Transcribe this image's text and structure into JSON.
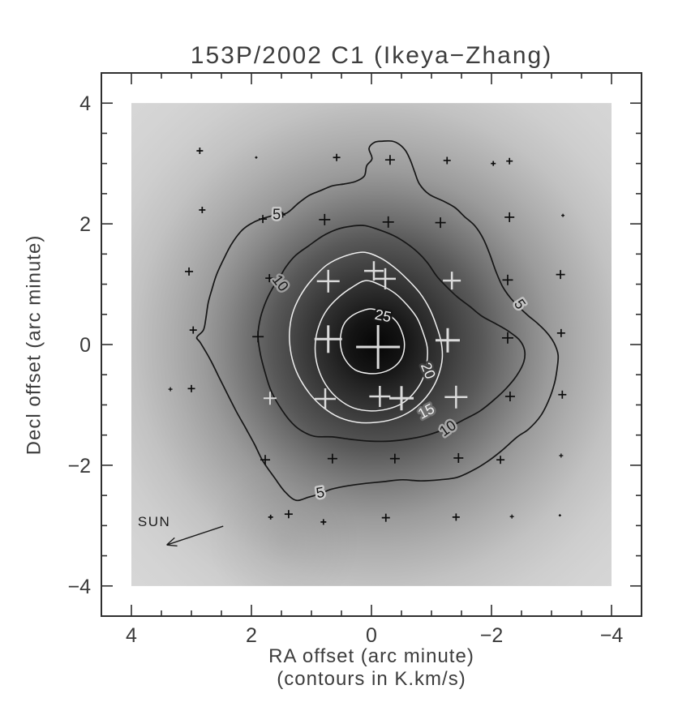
{
  "title": "153P/2002 C1 (Ikeya−Zhang)",
  "chart_data": {
    "type": "contour-map",
    "title": "153P/2002 C1 (Ikeya−Zhang)",
    "xlabel": "RA offset (arc minute)",
    "xlabel2": "(contours in K.km/s)",
    "ylabel": "Decl offset (arc minute)",
    "contour_units": "K.km/s",
    "xlim": [
      4.5,
      -4.5
    ],
    "ylim": [
      -4.5,
      4.5
    ],
    "x_ticks": [
      4,
      2,
      0,
      -2,
      -4
    ],
    "y_ticks": [
      4,
      2,
      0,
      -2,
      -4
    ],
    "x_tick_labels": [
      "4",
      "2",
      "0",
      "−2",
      "−4"
    ],
    "y_tick_labels": [
      "4",
      "2",
      "0",
      "−2",
      "−4"
    ],
    "minor_tick_step": 0.5,
    "image_extent": {
      "ra": [
        4,
        -4
      ],
      "dec": [
        -4,
        4
      ]
    },
    "colors": {
      "field_light": "#d6d6d6",
      "center_dark": "#060606",
      "contour_black": "#161616",
      "contour_white": "#efefef",
      "cross_black": "#0d0d0d",
      "cross_white": "#dadada",
      "frame": "#2f2f2f"
    },
    "peak_center": {
      "ra": -0.09,
      "dec": 0.0
    },
    "contour_levels": [
      5,
      10,
      15,
      20,
      25
    ],
    "contours": [
      {
        "level": 5,
        "color": "black",
        "points": [
          [
            -0.01,
            3.08
          ],
          [
            0.04,
            3.25
          ],
          [
            -0.05,
            3.35
          ],
          [
            -0.19,
            3.37
          ],
          [
            -0.34,
            3.37
          ],
          [
            -0.46,
            3.32
          ],
          [
            -0.57,
            3.21
          ],
          [
            -0.65,
            3.05
          ],
          [
            -0.72,
            2.86
          ],
          [
            -0.8,
            2.66
          ],
          [
            -0.96,
            2.49
          ],
          [
            -1.19,
            2.38
          ],
          [
            -1.39,
            2.27
          ],
          [
            -1.55,
            2.12
          ],
          [
            -1.72,
            1.97
          ],
          [
            -1.86,
            1.76
          ],
          [
            -1.97,
            1.5
          ],
          [
            -2.07,
            1.22
          ],
          [
            -2.18,
            0.97
          ],
          [
            -2.31,
            0.78
          ],
          [
            -2.46,
            0.62
          ],
          [
            -2.61,
            0.48
          ],
          [
            -2.78,
            0.34
          ],
          [
            -2.93,
            0.19
          ],
          [
            -3.04,
            0.03
          ],
          [
            -3.11,
            -0.17
          ],
          [
            -3.09,
            -0.42
          ],
          [
            -3.05,
            -0.64
          ],
          [
            -2.96,
            -0.91
          ],
          [
            -2.82,
            -1.18
          ],
          [
            -2.62,
            -1.4
          ],
          [
            -2.43,
            -1.53
          ],
          [
            -2.18,
            -1.75
          ],
          [
            -1.96,
            -1.92
          ],
          [
            -1.7,
            -2.08
          ],
          [
            -1.43,
            -2.2
          ],
          [
            -1.14,
            -2.24
          ],
          [
            -0.82,
            -2.26
          ],
          [
            -0.51,
            -2.24
          ],
          [
            -0.22,
            -2.27
          ],
          [
            0.09,
            -2.3
          ],
          [
            0.39,
            -2.34
          ],
          [
            0.68,
            -2.4
          ],
          [
            0.85,
            -2.47
          ],
          [
            1.05,
            -2.53
          ],
          [
            1.26,
            -2.58
          ],
          [
            1.45,
            -2.43
          ],
          [
            1.62,
            -2.2
          ],
          [
            1.81,
            -1.93
          ],
          [
            1.95,
            -1.65
          ],
          [
            2.11,
            -1.36
          ],
          [
            2.24,
            -1.13
          ],
          [
            2.38,
            -0.86
          ],
          [
            2.54,
            -0.54
          ],
          [
            2.69,
            -0.24
          ],
          [
            2.85,
            0.03
          ],
          [
            2.91,
            0.12
          ],
          [
            2.8,
            0.24
          ],
          [
            2.76,
            0.43
          ],
          [
            2.72,
            0.69
          ],
          [
            2.66,
            0.91
          ],
          [
            2.58,
            1.16
          ],
          [
            2.47,
            1.4
          ],
          [
            2.34,
            1.65
          ],
          [
            2.18,
            1.87
          ],
          [
            2.03,
            1.99
          ],
          [
            1.84,
            2.08
          ],
          [
            1.62,
            2.14
          ],
          [
            1.41,
            2.18
          ],
          [
            1.22,
            2.34
          ],
          [
            1.04,
            2.47
          ],
          [
            0.85,
            2.55
          ],
          [
            0.65,
            2.63
          ],
          [
            0.46,
            2.66
          ],
          [
            0.27,
            2.7
          ],
          [
            0.12,
            2.79
          ],
          [
            0.08,
            2.96
          ]
        ]
      },
      {
        "level": 10,
        "color": "black",
        "points": [
          [
            0.11,
            1.97
          ],
          [
            -0.16,
            1.89
          ],
          [
            -0.38,
            1.8
          ],
          [
            -0.58,
            1.68
          ],
          [
            -0.76,
            1.54
          ],
          [
            -0.93,
            1.36
          ],
          [
            -1.09,
            1.13
          ],
          [
            -1.26,
            0.95
          ],
          [
            -1.43,
            0.79
          ],
          [
            -1.64,
            0.63
          ],
          [
            -1.84,
            0.47
          ],
          [
            -2.08,
            0.34
          ],
          [
            -2.3,
            0.21
          ],
          [
            -2.47,
            0.07
          ],
          [
            -2.55,
            -0.09
          ],
          [
            -2.54,
            -0.28
          ],
          [
            -2.43,
            -0.5
          ],
          [
            -2.26,
            -0.71
          ],
          [
            -2.05,
            -0.91
          ],
          [
            -1.81,
            -1.1
          ],
          [
            -1.55,
            -1.24
          ],
          [
            -1.27,
            -1.38
          ],
          [
            -0.97,
            -1.49
          ],
          [
            -0.65,
            -1.56
          ],
          [
            -0.31,
            -1.6
          ],
          [
            0.03,
            -1.6
          ],
          [
            0.35,
            -1.57
          ],
          [
            0.65,
            -1.53
          ],
          [
            0.95,
            -1.52
          ],
          [
            1.18,
            -1.42
          ],
          [
            1.36,
            -1.26
          ],
          [
            1.54,
            -1.01
          ],
          [
            1.68,
            -0.75
          ],
          [
            1.77,
            -0.47
          ],
          [
            1.85,
            -0.16
          ],
          [
            1.89,
            0.15
          ],
          [
            1.85,
            0.44
          ],
          [
            1.76,
            0.71
          ],
          [
            1.65,
            0.93
          ],
          [
            1.54,
            1.09
          ],
          [
            1.43,
            1.28
          ],
          [
            1.26,
            1.48
          ],
          [
            1.04,
            1.64
          ],
          [
            0.81,
            1.8
          ],
          [
            0.57,
            1.91
          ],
          [
            0.34,
            1.96
          ]
        ]
      },
      {
        "level": 15,
        "color": "white",
        "points": [
          [
            0.14,
            1.53
          ],
          [
            -0.14,
            1.44
          ],
          [
            -0.38,
            1.28
          ],
          [
            -0.61,
            1.07
          ],
          [
            -0.81,
            0.85
          ],
          [
            -0.97,
            0.59
          ],
          [
            -1.08,
            0.32
          ],
          [
            -1.16,
            0.05
          ],
          [
            -1.18,
            -0.23
          ],
          [
            -1.12,
            -0.5
          ],
          [
            -1.0,
            -0.75
          ],
          [
            -0.82,
            -0.97
          ],
          [
            -0.61,
            -1.13
          ],
          [
            -0.35,
            -1.24
          ],
          [
            -0.07,
            -1.29
          ],
          [
            0.23,
            -1.29
          ],
          [
            0.53,
            -1.21
          ],
          [
            0.78,
            -1.06
          ],
          [
            1.0,
            -0.85
          ],
          [
            1.18,
            -0.59
          ],
          [
            1.3,
            -0.31
          ],
          [
            1.36,
            -0.01
          ],
          [
            1.36,
            0.28
          ],
          [
            1.3,
            0.56
          ],
          [
            1.16,
            0.85
          ],
          [
            0.97,
            1.1
          ],
          [
            0.74,
            1.32
          ],
          [
            0.46,
            1.46
          ]
        ]
      },
      {
        "level": 20,
        "color": "white",
        "points": [
          [
            0.09,
            1.06
          ],
          [
            -0.16,
            0.98
          ],
          [
            -0.39,
            0.85
          ],
          [
            -0.59,
            0.66
          ],
          [
            -0.76,
            0.44
          ],
          [
            -0.86,
            0.2
          ],
          [
            -0.93,
            -0.05
          ],
          [
            -0.92,
            -0.32
          ],
          [
            -0.85,
            -0.58
          ],
          [
            -0.7,
            -0.81
          ],
          [
            -0.5,
            -0.98
          ],
          [
            -0.26,
            -1.07
          ],
          [
            0.01,
            -1.1
          ],
          [
            0.3,
            -1.05
          ],
          [
            0.54,
            -0.91
          ],
          [
            0.73,
            -0.71
          ],
          [
            0.86,
            -0.47
          ],
          [
            0.93,
            -0.2
          ],
          [
            0.93,
            0.08
          ],
          [
            0.86,
            0.35
          ],
          [
            0.73,
            0.59
          ],
          [
            0.54,
            0.79
          ],
          [
            0.32,
            0.95
          ]
        ]
      },
      {
        "level": 25,
        "color": "white",
        "points": [
          [
            0.32,
            0.48
          ],
          [
            0.15,
            0.56
          ],
          [
            -0.01,
            0.59
          ],
          [
            -0.23,
            0.52
          ],
          [
            -0.41,
            0.39
          ],
          [
            -0.51,
            0.2
          ],
          [
            -0.55,
            0.0
          ],
          [
            -0.51,
            -0.21
          ],
          [
            -0.39,
            -0.36
          ],
          [
            -0.19,
            -0.46
          ],
          [
            0.04,
            -0.48
          ],
          [
            0.27,
            -0.42
          ],
          [
            0.43,
            -0.26
          ],
          [
            0.51,
            -0.05
          ],
          [
            0.51,
            0.17
          ],
          [
            0.45,
            0.35
          ]
        ]
      }
    ],
    "contour_labels": [
      {
        "text": "5",
        "ra": 1.58,
        "dec": 2.14,
        "rot": 0,
        "color": "black",
        "halo": "#c7c7c7"
      },
      {
        "text": "5",
        "ra": -2.46,
        "dec": 0.66,
        "rot": 55,
        "color": "black",
        "halo": "#c2c2c2"
      },
      {
        "text": "5",
        "ra": 0.85,
        "dec": -2.47,
        "rot": -10,
        "color": "black",
        "halo": "#cbcbcb"
      },
      {
        "text": "10",
        "ra": 1.53,
        "dec": 1.01,
        "rot": 52,
        "color": "black",
        "halo": "#9e9e9e"
      },
      {
        "text": "10",
        "ra": -1.28,
        "dec": -1.4,
        "rot": -35,
        "color": "black",
        "halo": "#a8a8a8"
      },
      {
        "text": "15",
        "ra": -0.92,
        "dec": -1.12,
        "rot": -28,
        "color": "white",
        "halo": "#6f6f6f"
      },
      {
        "text": "20",
        "ra": -0.93,
        "dec": -0.44,
        "rot": 68,
        "color": "white",
        "halo": "#3f3f3f"
      },
      {
        "text": "25",
        "ra": -0.19,
        "dec": 0.46,
        "rot": 12,
        "color": "white",
        "halo": "#161616"
      }
    ],
    "markers": [
      {
        "ra": 2.86,
        "dec": 3.21,
        "size": 8,
        "color": "b"
      },
      {
        "ra": 1.92,
        "dec": 3.1,
        "size": 3,
        "color": "b"
      },
      {
        "ra": 0.58,
        "dec": 3.1,
        "size": 9,
        "color": "b"
      },
      {
        "ra": -0.31,
        "dec": 3.06,
        "size": 12,
        "color": "b"
      },
      {
        "ra": -1.26,
        "dec": 3.05,
        "size": 9,
        "color": "b"
      },
      {
        "ra": -2.03,
        "dec": 3.0,
        "size": 6,
        "color": "b"
      },
      {
        "ra": -2.3,
        "dec": 3.04,
        "size": 8,
        "color": "b"
      },
      {
        "ra": 2.82,
        "dec": 2.23,
        "size": 8,
        "color": "b"
      },
      {
        "ra": 1.81,
        "dec": 2.08,
        "size": 10,
        "color": "b"
      },
      {
        "ra": 1.48,
        "dec": 2.15,
        "size": 7,
        "color": "b"
      },
      {
        "ra": 0.78,
        "dec": 2.07,
        "size": 14,
        "color": "b"
      },
      {
        "ra": -0.28,
        "dec": 2.03,
        "size": 14,
        "color": "b"
      },
      {
        "ra": -1.15,
        "dec": 2.02,
        "size": 13,
        "color": "b"
      },
      {
        "ra": -2.3,
        "dec": 2.11,
        "size": 12,
        "color": "b"
      },
      {
        "ra": -3.19,
        "dec": 2.14,
        "size": 4,
        "color": "b"
      },
      {
        "ra": 3.04,
        "dec": 1.21,
        "size": 10,
        "color": "b"
      },
      {
        "ra": 1.7,
        "dec": 1.1,
        "size": 10,
        "color": "b"
      },
      {
        "ra": 0.72,
        "dec": 1.05,
        "size": 28,
        "color": "w"
      },
      {
        "ra": -0.04,
        "dec": 1.22,
        "size": 24,
        "color": "w"
      },
      {
        "ra": -0.23,
        "dec": 1.09,
        "size": 26,
        "color": "w"
      },
      {
        "ra": -1.34,
        "dec": 1.06,
        "size": 22,
        "color": "w"
      },
      {
        "ra": -2.27,
        "dec": 1.07,
        "size": 13,
        "color": "b"
      },
      {
        "ra": -3.15,
        "dec": 1.16,
        "size": 11,
        "color": "b"
      },
      {
        "ra": 2.97,
        "dec": 0.24,
        "size": 9,
        "color": "b"
      },
      {
        "ra": 1.89,
        "dec": 0.13,
        "size": 14,
        "color": "b"
      },
      {
        "ra": 0.72,
        "dec": 0.09,
        "size": 34,
        "color": "w"
      },
      {
        "ra": -0.11,
        "dec": -0.04,
        "size": 54,
        "color": "w"
      },
      {
        "ra": -1.27,
        "dec": 0.07,
        "size": 30,
        "color": "w"
      },
      {
        "ra": -2.27,
        "dec": 0.11,
        "size": 14,
        "color": "b"
      },
      {
        "ra": -3.16,
        "dec": 0.19,
        "size": 10,
        "color": "b"
      },
      {
        "ra": 1.69,
        "dec": -0.89,
        "size": 16,
        "color": "w"
      },
      {
        "ra": 0.77,
        "dec": -0.9,
        "size": 26,
        "color": "w"
      },
      {
        "ra": -0.14,
        "dec": -0.86,
        "size": 26,
        "color": "w"
      },
      {
        "ra": -0.5,
        "dec": -0.89,
        "size": 30,
        "color": "w"
      },
      {
        "ra": -1.41,
        "dec": -0.87,
        "size": 28,
        "color": "w"
      },
      {
        "ra": -2.31,
        "dec": -0.86,
        "size": 12,
        "color": "b"
      },
      {
        "ra": -3.18,
        "dec": -0.83,
        "size": 10,
        "color": "b"
      },
      {
        "ra": 1.77,
        "dec": -1.91,
        "size": 12,
        "color": "b"
      },
      {
        "ra": 0.65,
        "dec": -1.89,
        "size": 12,
        "color": "b"
      },
      {
        "ra": -0.39,
        "dec": -1.89,
        "size": 12,
        "color": "b"
      },
      {
        "ra": -1.45,
        "dec": -1.88,
        "size": 12,
        "color": "b"
      },
      {
        "ra": -2.15,
        "dec": -1.91,
        "size": 10,
        "color": "b"
      },
      {
        "ra": -3.16,
        "dec": -1.84,
        "size": 5,
        "color": "b"
      },
      {
        "ra": 1.68,
        "dec": -2.86,
        "size": 6,
        "color": "b"
      },
      {
        "ra": 1.38,
        "dec": -2.81,
        "size": 10,
        "color": "b"
      },
      {
        "ra": 0.8,
        "dec": -2.94,
        "size": 7,
        "color": "b"
      },
      {
        "ra": -0.24,
        "dec": -2.87,
        "size": 10,
        "color": "b"
      },
      {
        "ra": -1.41,
        "dec": -2.86,
        "size": 9,
        "color": "b"
      },
      {
        "ra": -2.34,
        "dec": -2.85,
        "size": 5,
        "color": "b"
      },
      {
        "ra": -3.14,
        "dec": -2.83,
        "size": 3,
        "color": "b"
      },
      {
        "ra": 3.35,
        "dec": -0.74,
        "size": 5,
        "color": "b"
      },
      {
        "ra": 3.0,
        "dec": -0.73,
        "size": 9,
        "color": "b"
      }
    ],
    "sun": {
      "label": "SUN",
      "label_pos": {
        "ra": 3.62,
        "dec": -2.93
      },
      "arrow_from": {
        "ra": 2.47,
        "dec": -3.01
      },
      "arrow_to": {
        "ra": 3.41,
        "dec": -3.32
      }
    }
  }
}
